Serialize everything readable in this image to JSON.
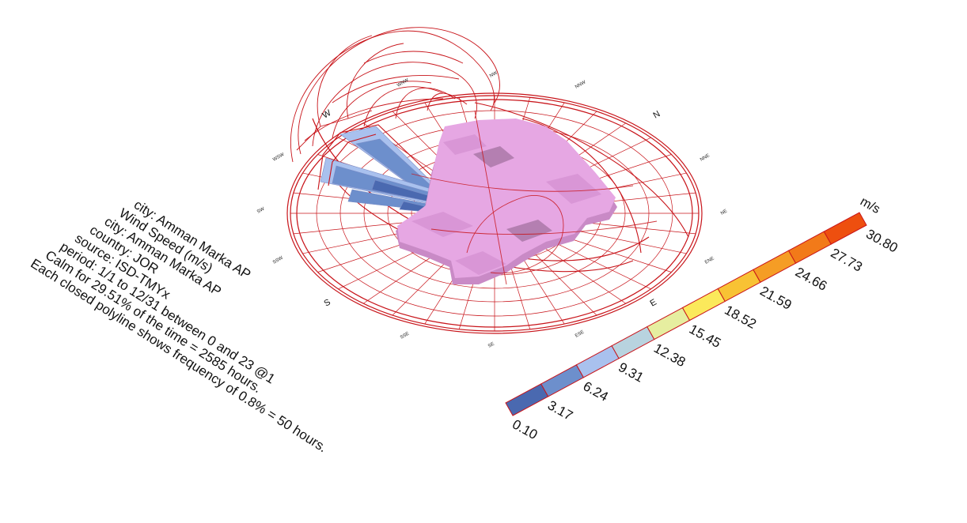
{
  "info_lines": [
    "city: Amman Marka AP",
    "Wind Speed (m/s)",
    "city: Amman Marka AP",
    "country: JOR",
    "source: ISD-TMYx",
    "period: 1/1 to 12/31 between 0 and 23 @1",
    "Calm for 29.51% of the time = 2585 hours.",
    "Each closed polyline shows frequency of 0.8% = 50 hours."
  ],
  "compass": {
    "cardinals": [
      "N",
      "E",
      "S",
      "W"
    ],
    "intercardinals": [
      "NNE",
      "NE",
      "ENE",
      "ESE",
      "SE",
      "SSE",
      "SSW",
      "SW",
      "WSW",
      "WNW",
      "NW",
      "NNW"
    ]
  },
  "legend": {
    "unit": "m/s",
    "ticks": [
      "0.10",
      "3.17",
      "6.24",
      "9.31",
      "12.38",
      "15.45",
      "18.52",
      "21.59",
      "24.66",
      "27.73",
      "30.80"
    ],
    "colors": [
      "#4a69b0",
      "#6d8fcc",
      "#a9c1ee",
      "#b8d3df",
      "#e6eea0",
      "#fbe95b",
      "#f8c234",
      "#f59d25",
      "#f27a19",
      "#ee4f0f"
    ]
  },
  "colors": {
    "sunpath": "#c8141a",
    "context_mass": "#e6a7e3",
    "context_mass_shadow": "#c98ac6"
  }
}
